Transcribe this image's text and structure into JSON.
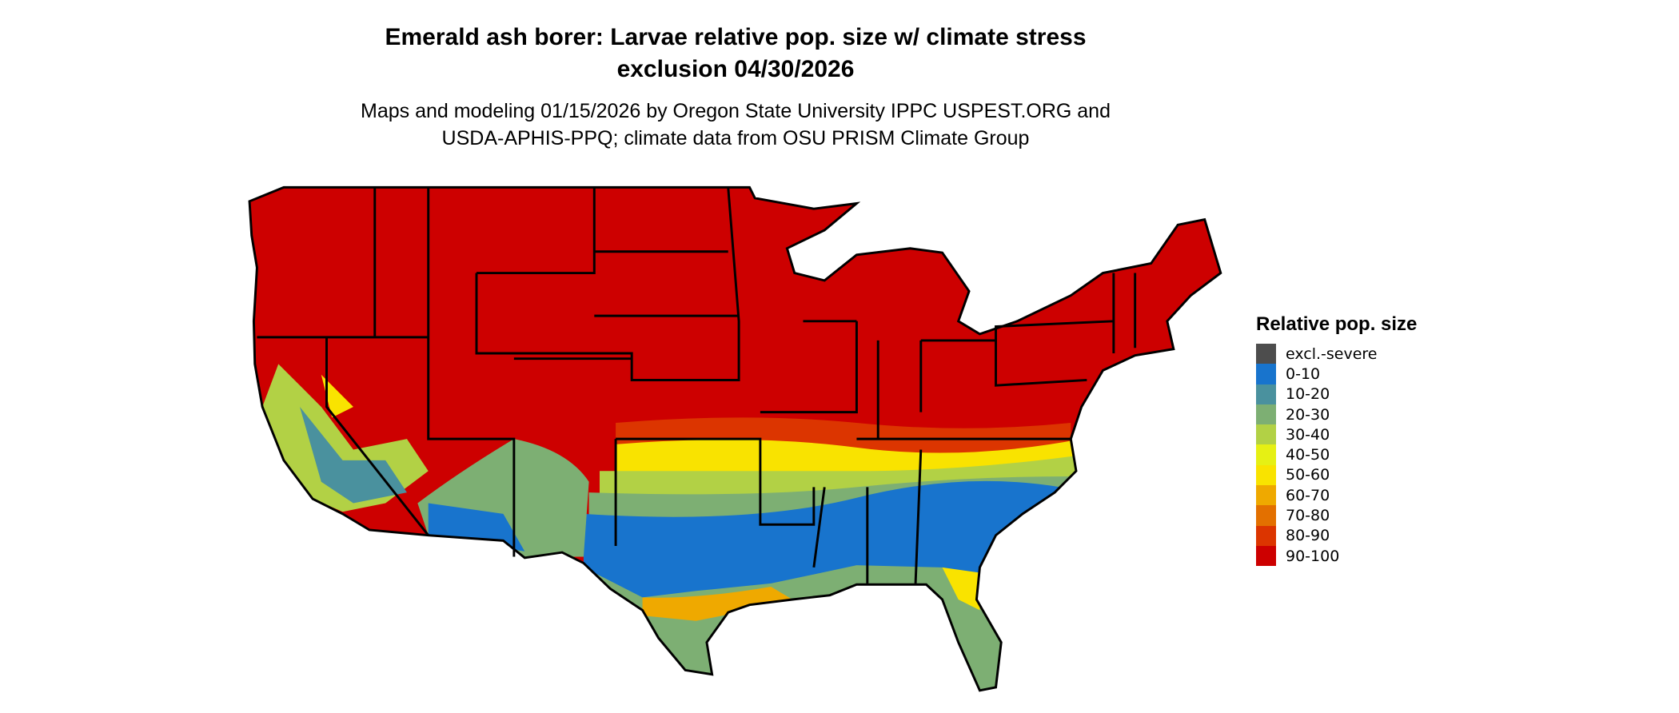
{
  "header": {
    "title_line1": "Emerald ash borer: Larvae relative pop. size w/ climate stress",
    "title_line2": "exclusion 04/30/2026",
    "subtitle_line1": "Maps and modeling 01/15/2026 by Oregon State University IPPC USPEST.ORG and",
    "subtitle_line2": "USDA-APHIS-PPQ; climate data from OSU PRISM Climate Group"
  },
  "legend": {
    "title": "Relative pop. size",
    "items": [
      {
        "label": "excl.-severe",
        "color": "#4d4d4d"
      },
      {
        "label": "0-10",
        "color": "#1874cd"
      },
      {
        "label": "10-20",
        "color": "#4a919e"
      },
      {
        "label": "20-30",
        "color": "#7daf73"
      },
      {
        "label": "30-40",
        "color": "#b2d145"
      },
      {
        "label": "40-50",
        "color": "#e6f014"
      },
      {
        "label": "50-60",
        "color": "#f9e300"
      },
      {
        "label": "60-70",
        "color": "#efa900"
      },
      {
        "label": "70-80",
        "color": "#e37000"
      },
      {
        "label": "80-90",
        "color": "#dc3500"
      },
      {
        "label": "90-100",
        "color": "#cd0000"
      }
    ]
  }
}
